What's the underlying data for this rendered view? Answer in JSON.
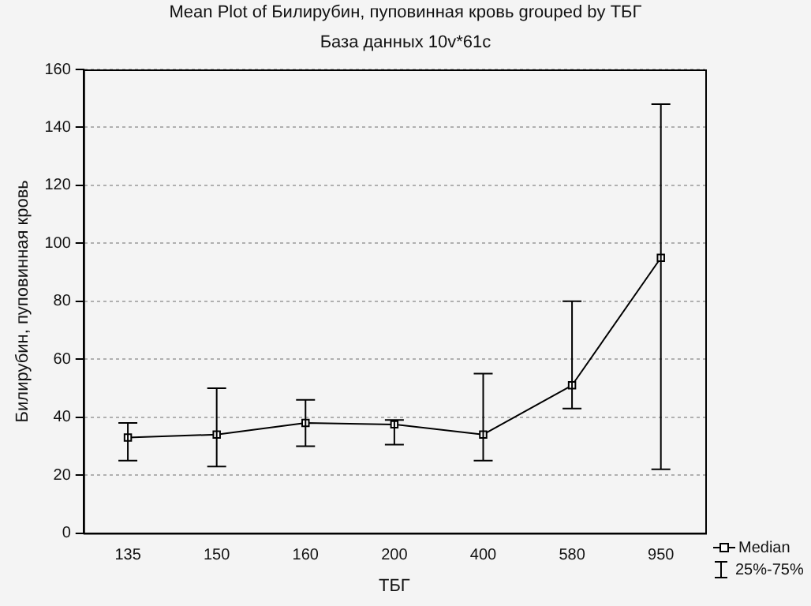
{
  "chart_data": {
    "type": "line",
    "title": "Mean Plot of Билирубин, пуповинная кровь grouped by  ТБГ",
    "subtitle": "База данных 10v*61c",
    "xlabel": "ТБГ",
    "ylabel": "Билирубин, пуповинная кровь",
    "categories": [
      "135",
      "150",
      "160",
      "200",
      "400",
      "580",
      "950"
    ],
    "series": [
      {
        "name": "Median",
        "color": "#000000",
        "values": [
          33,
          34,
          38,
          37.5,
          34,
          51,
          95
        ],
        "errors": [
          [
            25,
            38
          ],
          [
            23,
            50
          ],
          [
            30,
            46
          ],
          [
            30.5,
            39
          ],
          [
            25,
            55
          ],
          [
            43,
            80
          ],
          [
            22,
            148
          ]
        ]
      }
    ],
    "annotations": [
      "25%-75%"
    ],
    "ylim": [
      0,
      160
    ],
    "yticks": [
      0,
      20,
      40,
      60,
      80,
      100,
      120,
      140,
      160
    ],
    "grid": "y",
    "legend": "bottom right",
    "marker": "square",
    "line_style": "solid"
  }
}
